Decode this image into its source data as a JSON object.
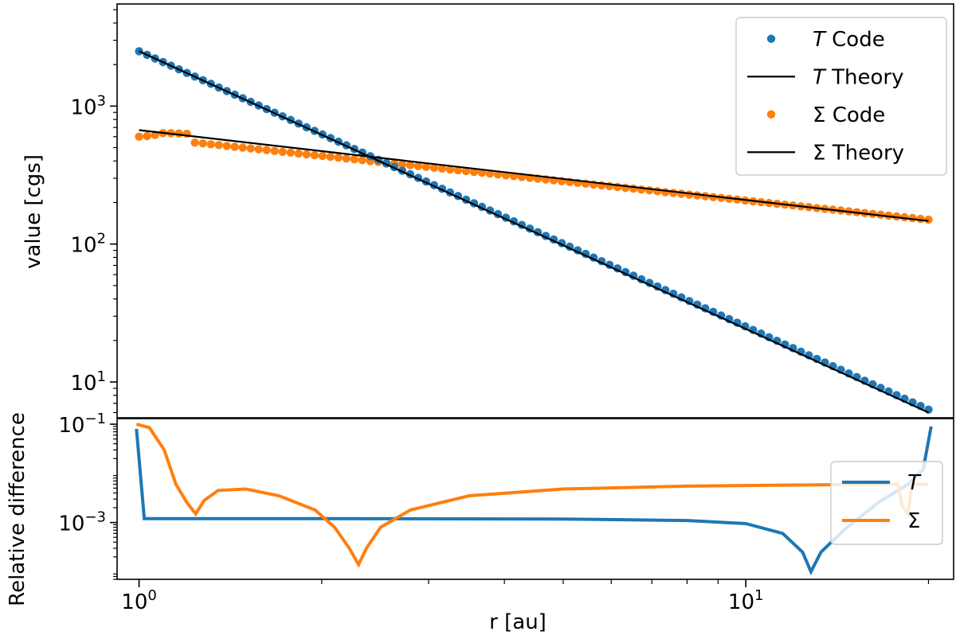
{
  "chart_data": [
    {
      "type": "scatter",
      "panel": "top",
      "xlabel": "",
      "ylabel": "value [cgs]",
      "xscale": "log",
      "yscale": "log",
      "xlim": [
        0.92,
        22
      ],
      "ylim": [
        5.5,
        5500
      ],
      "y_ticks": [
        {
          "value": 10,
          "base": "10",
          "exp": "1"
        },
        {
          "value": 100,
          "base": "10",
          "exp": "2"
        },
        {
          "value": 1000,
          "base": "10",
          "exp": "3"
        }
      ],
      "grid": false,
      "legend": {
        "location": "upper right",
        "entries": [
          {
            "var": "T",
            "text": " Code",
            "style": "marker",
            "color": "#1f77b4"
          },
          {
            "var": "T",
            "text": " Theory",
            "style": "line",
            "color": "#000000"
          },
          {
            "var": "Σ",
            "text": " Code",
            "style": "marker",
            "color": "#ff7f0e"
          },
          {
            "var": "Σ",
            "text": " Theory",
            "style": "line",
            "color": "#000000"
          }
        ]
      },
      "series": [
        {
          "name": "T Code",
          "style": "marker",
          "color": "#1f77b4",
          "model": "power-law",
          "r_range": [
            1.0,
            20.0
          ],
          "n_points": 100,
          "points": [
            [
              1.0,
              2500
            ],
            [
              20.0,
              6.3
            ]
          ]
        },
        {
          "name": "T Theory",
          "style": "line",
          "color": "#000000",
          "points": [
            [
              1.0,
              2500
            ],
            [
              20.0,
              6.0
            ]
          ]
        },
        {
          "name": "Σ Code",
          "style": "marker",
          "color": "#ff7f0e",
          "model": "power-law",
          "r_range": [
            1.0,
            20.0
          ],
          "n_points": 100,
          "points": [
            [
              1.0,
              600
            ],
            [
              1.05,
              610
            ],
            [
              1.1,
              640
            ],
            [
              1.2,
              630
            ],
            [
              20.0,
              150
            ]
          ]
        },
        {
          "name": "Σ Theory",
          "style": "line",
          "color": "#000000",
          "points": [
            [
              1.0,
              670
            ],
            [
              20.0,
              147
            ]
          ]
        }
      ]
    },
    {
      "type": "line",
      "panel": "bottom",
      "xlabel": "r [au]",
      "ylabel": "Relative difference",
      "xscale": "log",
      "yscale": "log",
      "xlim": [
        0.92,
        22
      ],
      "ylim": [
        7e-05,
        0.13
      ],
      "x_ticks": [
        {
          "value": 1,
          "base": "10",
          "exp": "0"
        },
        {
          "value": 10,
          "base": "10",
          "exp": "1"
        }
      ],
      "y_ticks": [
        {
          "value": 0.001,
          "base": "10",
          "exp": "−3"
        },
        {
          "value": 0.1,
          "base": "10",
          "exp": "−1"
        }
      ],
      "grid": false,
      "legend": {
        "location": "lower right",
        "entries": [
          {
            "var": "T",
            "text": "",
            "style": "line",
            "color": "#1f77b4"
          },
          {
            "var": "Σ",
            "text": "",
            "style": "line",
            "color": "#ff7f0e"
          }
        ]
      },
      "series": [
        {
          "name": "T",
          "color": "#1f77b4",
          "points": [
            [
              0.99,
              0.08
            ],
            [
              1.02,
              0.0012
            ],
            [
              2.0,
              0.0012
            ],
            [
              5.0,
              0.00118
            ],
            [
              8.0,
              0.0011
            ],
            [
              10.0,
              0.00095
            ],
            [
              11.5,
              0.0006
            ],
            [
              12.4,
              0.00025
            ],
            [
              12.8,
              0.0001
            ],
            [
              13.3,
              0.00025
            ],
            [
              14.5,
              0.0007
            ],
            [
              16.5,
              0.0025
            ],
            [
              18.5,
              0.006
            ],
            [
              19.6,
              0.012
            ],
            [
              20.2,
              0.09
            ]
          ]
        },
        {
          "name": "Σ",
          "color": "#ff7f0e",
          "points": [
            [
              0.99,
              0.1
            ],
            [
              1.04,
              0.085
            ],
            [
              1.1,
              0.03
            ],
            [
              1.15,
              0.006
            ],
            [
              1.2,
              0.0025
            ],
            [
              1.24,
              0.0015
            ],
            [
              1.28,
              0.0028
            ],
            [
              1.35,
              0.0045
            ],
            [
              1.5,
              0.0048
            ],
            [
              1.7,
              0.0035
            ],
            [
              1.95,
              0.0018
            ],
            [
              2.1,
              0.0008
            ],
            [
              2.22,
              0.0003
            ],
            [
              2.3,
              0.00014
            ],
            [
              2.37,
              0.0003
            ],
            [
              2.5,
              0.0008
            ],
            [
              2.8,
              0.0018
            ],
            [
              3.5,
              0.0035
            ],
            [
              5.0,
              0.0048
            ],
            [
              8.0,
              0.0055
            ],
            [
              12.0,
              0.0058
            ],
            [
              17.0,
              0.006
            ],
            [
              17.8,
              0.006
            ],
            [
              18.1,
              0.0022
            ],
            [
              18.5,
              0.0015
            ],
            [
              18.8,
              0.006
            ],
            [
              20.0,
              0.006
            ]
          ]
        }
      ]
    }
  ]
}
